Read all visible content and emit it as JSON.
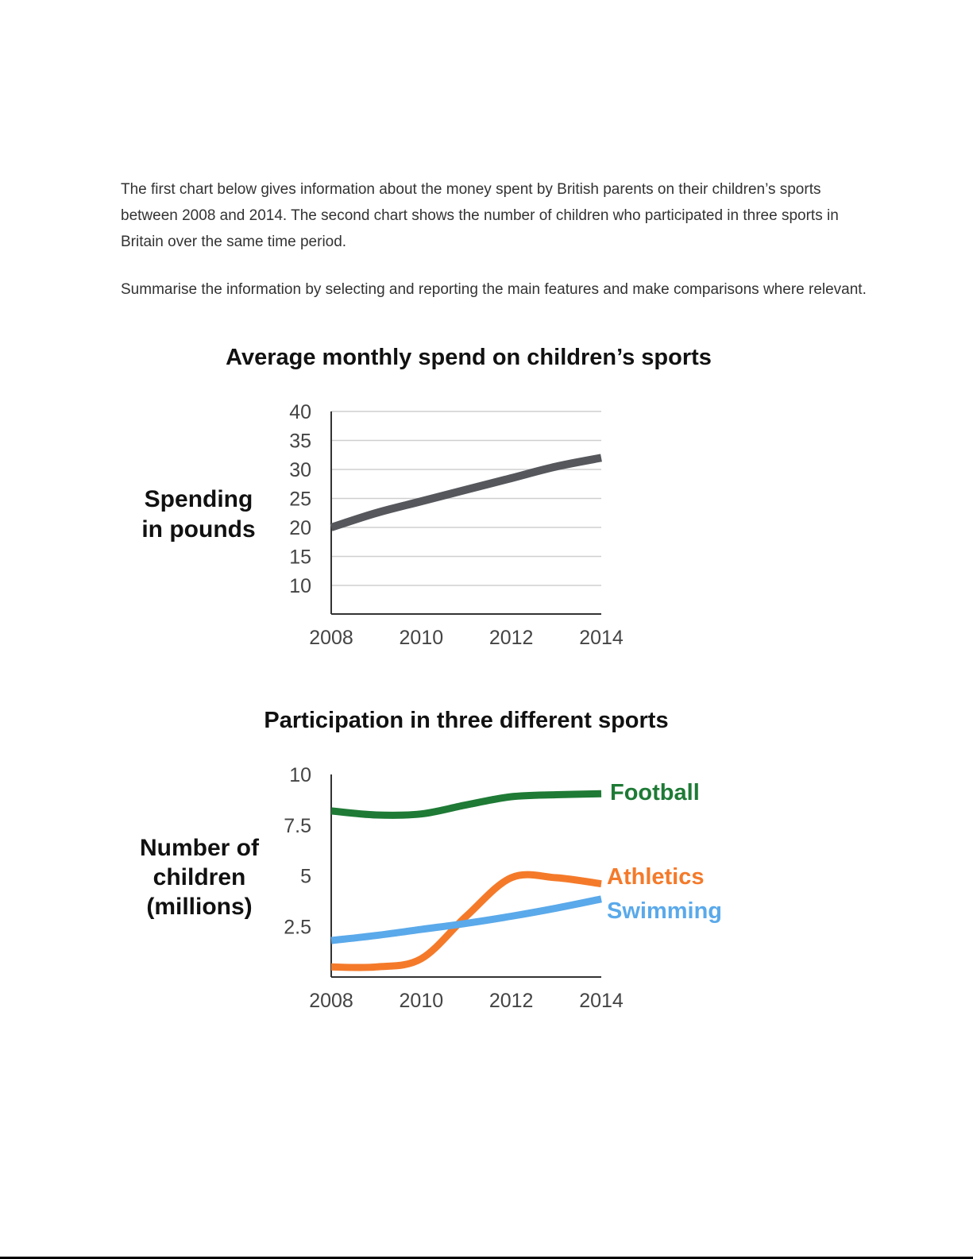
{
  "intro": {
    "paragraph1": "The first chart below gives information about the money spent by British parents on their children’s sports between 2008 and 2014. The second chart shows the number of children who participated in three sports in Britain over the same time period.",
    "paragraph2": "Summarise the information by selecting and reporting the main features and make comparisons where relevant."
  },
  "colors": {
    "spending": "#55575c",
    "football": "#1e7a35",
    "athletics": "#f47a2a",
    "swimming": "#5aa9ea"
  },
  "chart_data": [
    {
      "type": "line",
      "title": "Average monthly spend on children’s sports",
      "ylabel_lines": [
        "Spending",
        "in pounds"
      ],
      "xlabel": "",
      "x_ticks": [
        "2008",
        "2010",
        "2012",
        "2014"
      ],
      "y_ticks": [
        "10",
        "15",
        "20",
        "25",
        "30",
        "35",
        "40"
      ],
      "xlim": [
        2008,
        2014
      ],
      "ylim": [
        5,
        40
      ],
      "grid": true,
      "series": [
        {
          "x": [
            2008,
            2009,
            2010,
            2011,
            2012,
            2013,
            2014
          ],
          "values": [
            20,
            22.5,
            24.5,
            26.5,
            28.5,
            30.5,
            32
          ]
        }
      ]
    },
    {
      "type": "line",
      "title": "Participation in three different sports",
      "ylabel_lines": [
        "Number of",
        "children",
        "(millions)"
      ],
      "xlabel": "",
      "x_ticks": [
        "2008",
        "2010",
        "2012",
        "2014"
      ],
      "y_ticks": [
        "2.5",
        "5",
        "7.5",
        "10"
      ],
      "xlim": [
        2008,
        2014
      ],
      "ylim": [
        0,
        10
      ],
      "grid": false,
      "legend": "right, at line ends",
      "series": [
        {
          "name": "Football",
          "x": [
            2008,
            2009,
            2010,
            2011,
            2012,
            2013,
            2014
          ],
          "values": [
            8.2,
            8.0,
            8.05,
            8.5,
            8.9,
            9.0,
            9.05
          ]
        },
        {
          "name": "Athletics",
          "x": [
            2008,
            2009,
            2010,
            2011,
            2012,
            2013,
            2014
          ],
          "values": [
            0.5,
            0.5,
            0.9,
            3.0,
            4.9,
            4.9,
            4.6
          ]
        },
        {
          "name": "Swimming",
          "x": [
            2008,
            2009,
            2010,
            2011,
            2012,
            2013,
            2014
          ],
          "values": [
            1.8,
            2.05,
            2.35,
            2.65,
            3.0,
            3.4,
            3.85
          ]
        }
      ]
    }
  ]
}
